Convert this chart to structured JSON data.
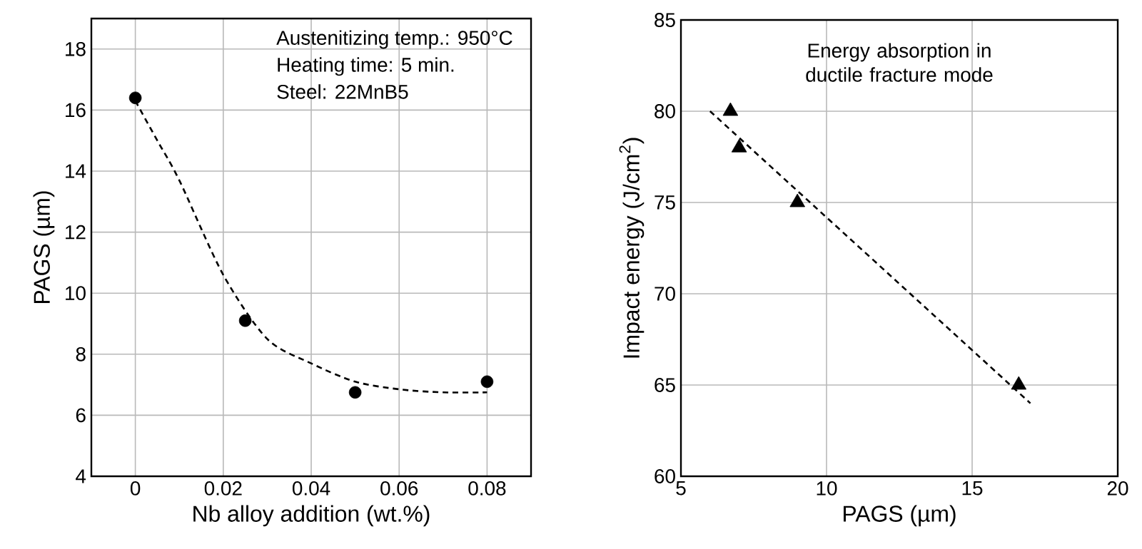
{
  "chart_data": [
    {
      "type": "scatter",
      "xlabel": "Nb alloy addition (wt.%)",
      "ylabel": "PAGS (µm)",
      "annotations": [
        "Austenitizing temp.: 950°C",
        "Heating time:  5 min.",
        "Steel: 22MnB5"
      ],
      "xlim": [
        -0.01,
        0.09
      ],
      "ylim": [
        4,
        19
      ],
      "xticks": [
        0,
        0.02,
        0.04,
        0.06,
        0.08
      ],
      "yticks": [
        4,
        6,
        8,
        10,
        12,
        14,
        16,
        18
      ],
      "grid": true,
      "marker": "circle",
      "series": [
        {
          "color": "#000000",
          "x": [
            0,
            0.025,
            0.05,
            0.08
          ],
          "values": [
            16.4,
            9.1,
            6.75,
            7.1
          ]
        },
        {
          "type": "line",
          "line_style": "dashed",
          "marker": "none",
          "color": "#000000",
          "x": [
            0,
            0.005,
            0.01,
            0.02,
            0.03,
            0.04,
            0.05,
            0.06,
            0.07,
            0.08
          ],
          "values": [
            16.3,
            15,
            13.7,
            10.6,
            8.5,
            7.7,
            7.1,
            6.85,
            6.75,
            6.75
          ]
        }
      ]
    },
    {
      "type": "scatter",
      "xlabel": "PAGS (µm)",
      "ylabel": "Impact energy (J/cm$^{2}$)",
      "annotations": [
        "Energy absorption in ductile fracture mode"
      ],
      "xlim": [
        5,
        20
      ],
      "ylim": [
        60,
        85
      ],
      "xticks": [
        5,
        10,
        15,
        20
      ],
      "yticks": [
        60,
        65,
        70,
        75,
        80,
        85
      ],
      "grid": true,
      "marker": "triangle",
      "series": [
        {
          "color": "#000000",
          "x": [
            6.7,
            7,
            9,
            16.6
          ],
          "values": [
            80,
            78,
            75,
            65
          ]
        },
        {
          "type": "line",
          "line_style": "dashed",
          "marker": "none",
          "color": "#000000",
          "x": [
            6,
            17
          ],
          "values": [
            80,
            64
          ]
        }
      ]
    }
  ]
}
